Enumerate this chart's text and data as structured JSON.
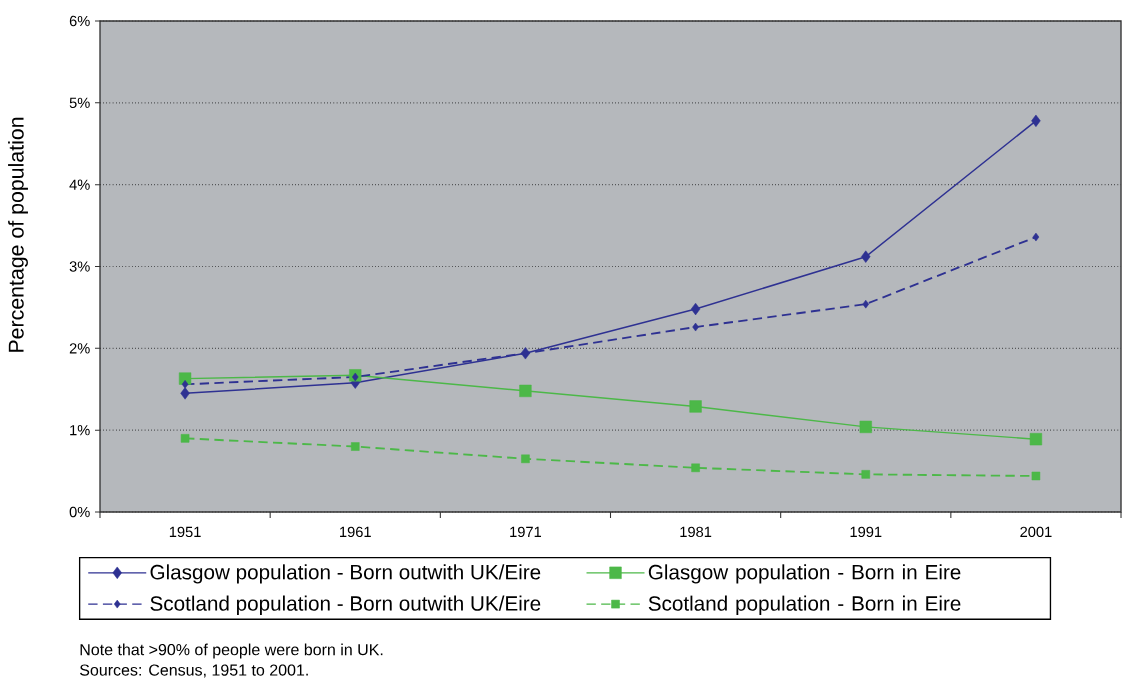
{
  "chart_data": {
    "type": "line",
    "ylabel": "Percentage of population",
    "categories": [
      "1951",
      "1961",
      "1971",
      "1981",
      "1991",
      "2001"
    ],
    "ylim": [
      0,
      6
    ],
    "yticks": [
      {
        "value": 0,
        "label": "0%"
      },
      {
        "value": 1,
        "label": "1%"
      },
      {
        "value": 2,
        "label": "2%"
      },
      {
        "value": 3,
        "label": "3%"
      },
      {
        "value": 4,
        "label": "4%"
      },
      {
        "value": 5,
        "label": "5%"
      },
      {
        "value": 6,
        "label": "6%"
      }
    ],
    "grid": "y",
    "legend": "bottom",
    "series": [
      {
        "name": "Glasgow population - Born outwith UK/Eire",
        "color": "#2e3192",
        "marker": "diamond",
        "line_style": "solid",
        "values": [
          1.45,
          1.58,
          1.94,
          2.48,
          3.12,
          4.78
        ]
      },
      {
        "name": "Glasgow population - Born in Eire",
        "color": "#4cb848",
        "marker": "square",
        "line_style": "solid",
        "values": [
          1.63,
          1.67,
          1.48,
          1.29,
          1.04,
          0.89
        ]
      },
      {
        "name": "Scotland population - Born outwith UK/Eire",
        "color": "#2e3192",
        "marker": "diamond",
        "line_style": "dashed",
        "values": [
          1.56,
          1.65,
          1.94,
          2.26,
          2.54,
          3.36
        ]
      },
      {
        "name": "Scotland population - Born in Eire",
        "color": "#4cb848",
        "marker": "square",
        "line_style": "dashed",
        "values": [
          0.9,
          0.8,
          0.65,
          0.54,
          0.46,
          0.44
        ]
      }
    ],
    "annotations": [
      "Note that >90% of people were born in UK.",
      "Sources:  Census, 1951 to 2001."
    ]
  }
}
